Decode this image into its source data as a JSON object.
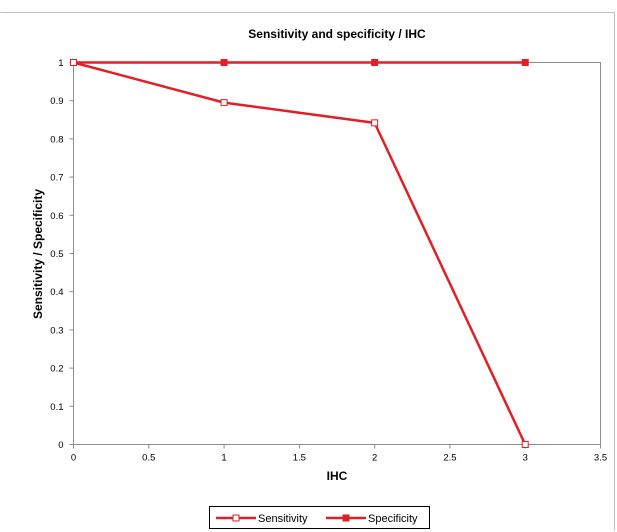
{
  "chart_data": {
    "type": "line",
    "title": "Sensitivity and specificity / IHC",
    "xlabel": "IHC",
    "ylabel": "Sensitivity / Specificity",
    "xlim": [
      0,
      3.5
    ],
    "ylim": [
      0,
      1
    ],
    "x_ticks": [
      "0",
      "0.5",
      "1",
      "1.5",
      "2",
      "2.5",
      "3",
      "3.5"
    ],
    "y_ticks": [
      "0",
      "0.1",
      "0.2",
      "0.3",
      "0.4",
      "0.5",
      "0.6",
      "0.7",
      "0.8",
      "0.9",
      "1"
    ],
    "grid": false,
    "legend_position": "bottom",
    "series": [
      {
        "name": "Sensitivity",
        "color": "#e31e24",
        "marker": "square-open",
        "x": [
          0,
          1,
          2,
          3
        ],
        "y": [
          1.0,
          0.895,
          0.842,
          0.0
        ]
      },
      {
        "name": "Specificity",
        "color": "#e31e24",
        "marker": "square-filled",
        "x": [
          0,
          1,
          2,
          3
        ],
        "y": [
          1.0,
          1.0,
          1.0,
          1.0
        ]
      }
    ]
  }
}
